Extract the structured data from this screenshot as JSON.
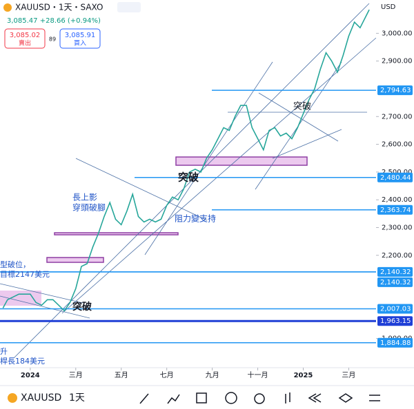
{
  "header": {
    "symbol": "XAUUSD・1天・SAXO",
    "quote": "3,085.47 +28.66 (+0.94%)",
    "sell_price": "3,085.02",
    "sell": "賣出",
    "spread": "89",
    "buy_price": "3,085.91",
    "buy": "買入"
  },
  "chart_data": {
    "type": "line",
    "currency": "USD",
    "color": "#26a69a",
    "x": [
      -1.2,
      -1,
      -0.5,
      0,
      0.25,
      0.5,
      0.75,
      1,
      1.25,
      1.5,
      1.75,
      2,
      2.25,
      2.5,
      2.75,
      3,
      3.25,
      3.5,
      3.75,
      4,
      4.25,
      4.5,
      4.75,
      5,
      5.25,
      5.5,
      5.75,
      6,
      6.25,
      6.5,
      6.75,
      7,
      7.25,
      7.5,
      7.75,
      8,
      8.25,
      8.5,
      8.75,
      9,
      9.25,
      9.5,
      9.75,
      10,
      10.25,
      10.5,
      10.75,
      11,
      11.25,
      11.5,
      11.75,
      12,
      12.25,
      12.5,
      12.75,
      13,
      13.25,
      13.5,
      13.75,
      14,
      14.25,
      14.5,
      14.9
    ],
    "values": [
      2010,
      2040,
      2060,
      2060,
      2030,
      2020,
      2040,
      2040,
      2020,
      2000,
      2030,
      2080,
      2160,
      2170,
      2230,
      2280,
      2340,
      2390,
      2330,
      2310,
      2360,
      2420,
      2340,
      2320,
      2330,
      2320,
      2330,
      2380,
      2410,
      2400,
      2440,
      2500,
      2510,
      2500,
      2550,
      2580,
      2620,
      2660,
      2650,
      2700,
      2740,
      2740,
      2660,
      2620,
      2580,
      2650,
      2660,
      2630,
      2640,
      2620,
      2660,
      2710,
      2760,
      2800,
      2870,
      2930,
      2900,
      2860,
      2920,
      2990,
      3040,
      3020,
      3085
    ],
    "xlim": [
      -1.33,
      15.2
    ],
    "ylim": [
      1795,
      3120
    ],
    "xticks": [
      {
        "value": 0,
        "label": "2024"
      },
      {
        "value": 2,
        "label": "三月"
      },
      {
        "value": 4,
        "label": "五月"
      },
      {
        "value": 6,
        "label": "七月"
      },
      {
        "value": 8,
        "label": "九月"
      },
      {
        "value": 10,
        "label": "十一月"
      },
      {
        "value": 12,
        "label": "2025"
      },
      {
        "value": 14,
        "label": "三月"
      }
    ],
    "yticks": [
      {
        "value": 3000,
        "label": "3,000.00"
      },
      {
        "value": 2900,
        "label": "2,900.00"
      },
      {
        "value": 2700,
        "label": "2,700.00"
      },
      {
        "value": 2600,
        "label": "2,600.00"
      },
      {
        "value": 2500,
        "label": "2,500.00"
      },
      {
        "value": 2400,
        "label": "2,400.00"
      },
      {
        "value": 2300,
        "label": "2,300.00"
      },
      {
        "value": 2200,
        "label": "2,200.00"
      },
      {
        "value": 1900,
        "label": "1,900.00"
      }
    ],
    "levels": [
      {
        "value": 2794.63,
        "label": "2,794.63"
      },
      {
        "value": 2480.44,
        "label": "2,480.44"
      },
      {
        "value": 2363.74,
        "label": "2,363.74"
      },
      {
        "value": 2140.32,
        "label": "2,140.32"
      },
      {
        "value": 2140.32,
        "label": "2,140.32"
      },
      {
        "value": 2007.03,
        "label": "2,007.03"
      },
      {
        "value": 1963.15,
        "label": "1,963.15"
      },
      {
        "value": 1884.88,
        "label": "1,884.88"
      }
    ],
    "annotations": [
      "突破",
      "突破",
      "突破",
      "長上影",
      "穿頭破腳",
      "阻力變支持",
      "型破位，",
      "目標2147美元",
      "升",
      "桿長184美元"
    ]
  },
  "toolbar": {
    "symbol": "XAUUSD",
    "interval": "1天"
  }
}
